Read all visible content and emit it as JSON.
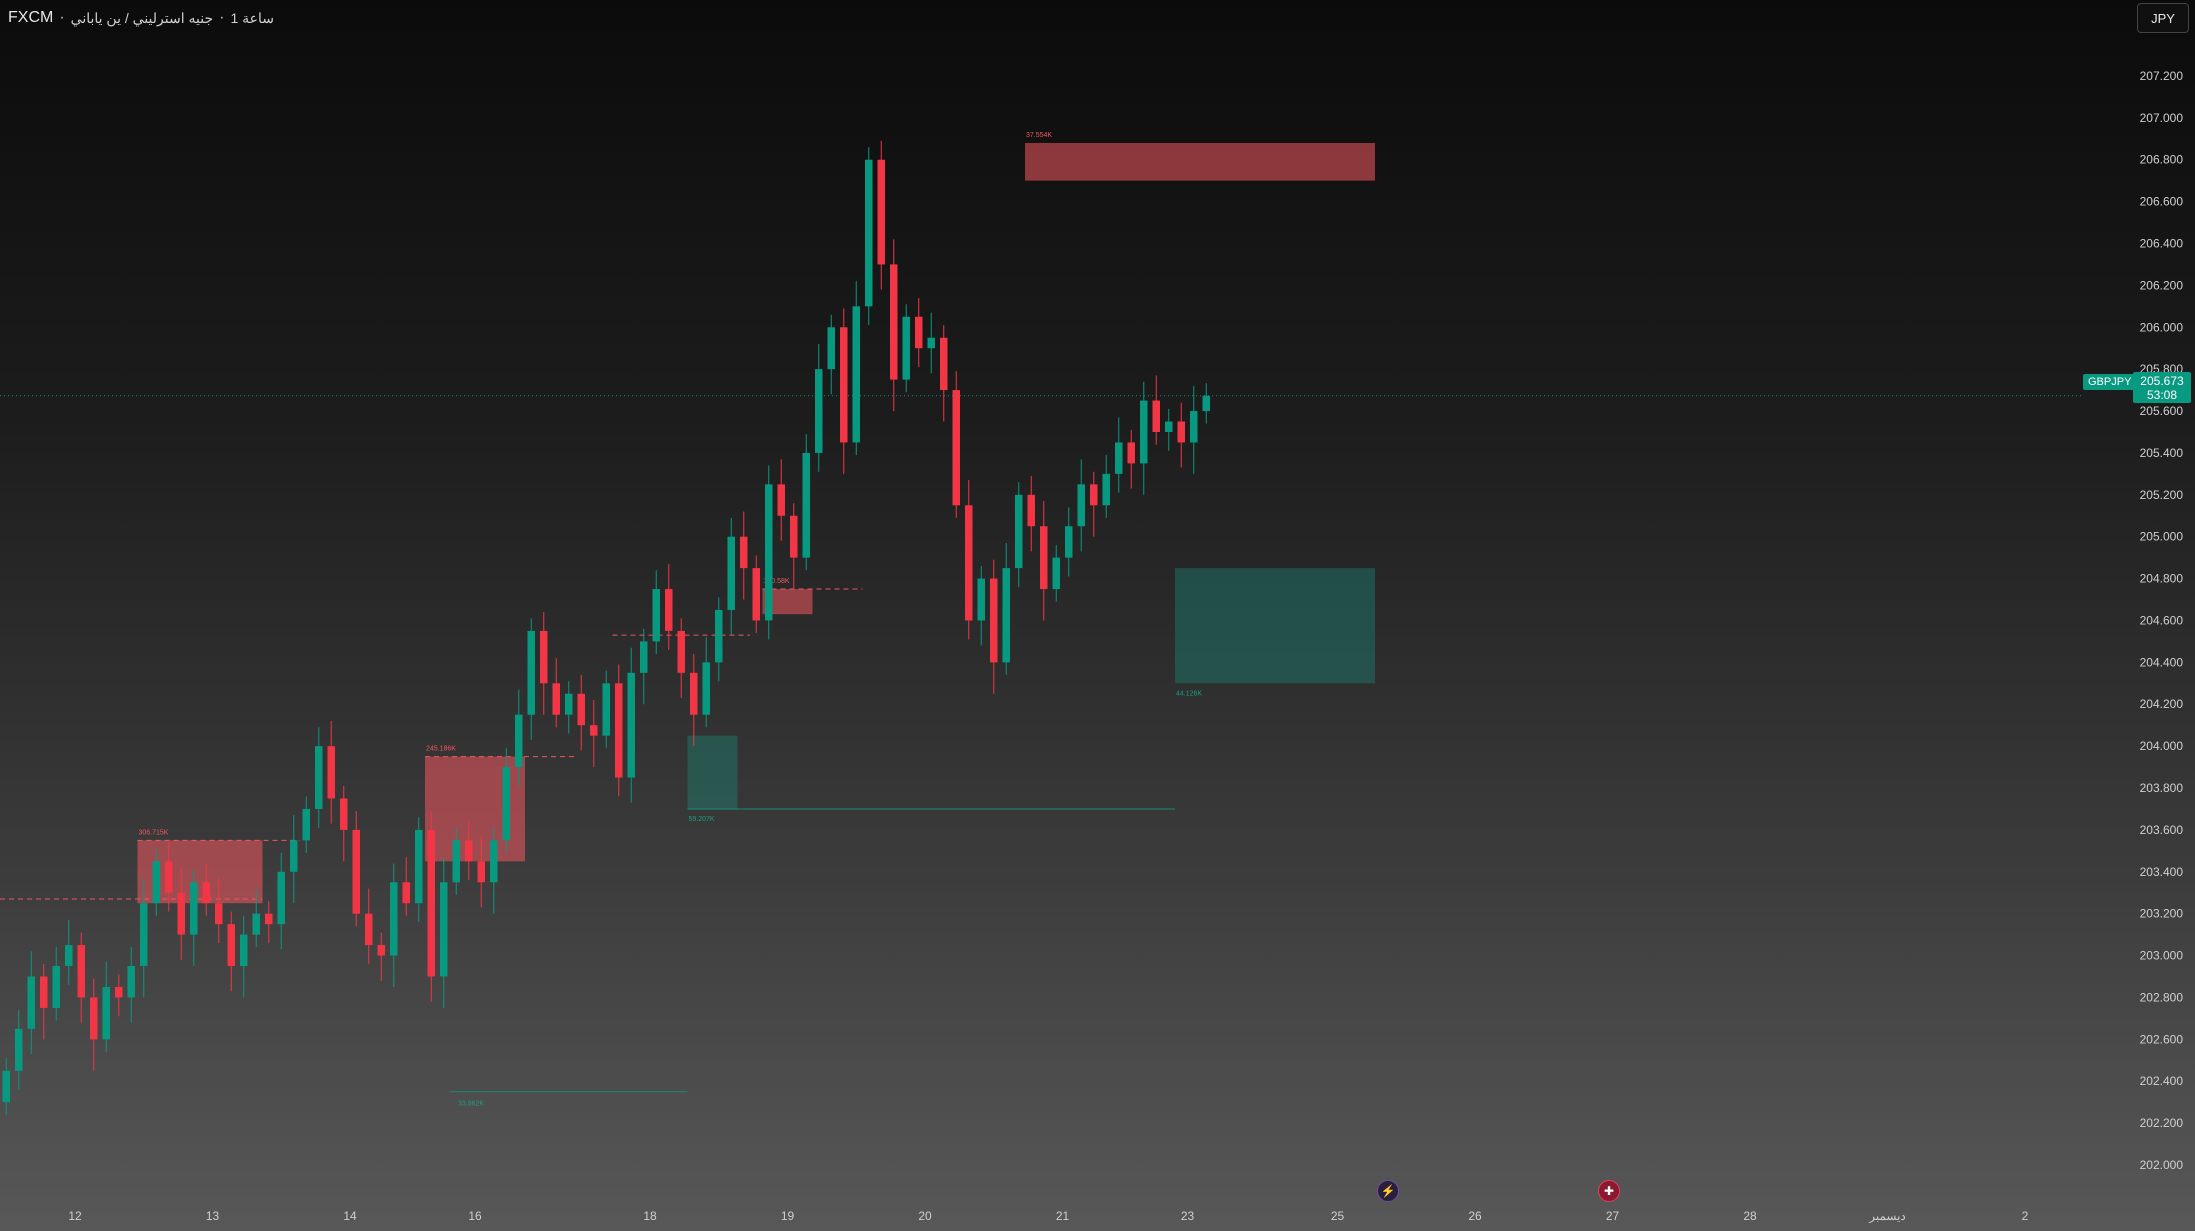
{
  "header": {
    "exchange": "FXCM",
    "separator": "·",
    "symbol_name": "جنيه استرليني / ين ياباني",
    "interval": "1 ساعة"
  },
  "currency_button": "JPY",
  "last_price": {
    "symbol": "GBPJPY",
    "value": "205.673",
    "countdown": "53:08",
    "color": "#089981"
  },
  "events": {
    "first_icon": "lightning-icon",
    "second_icon": "uk-flag-icon"
  },
  "colors": {
    "up": "#089981",
    "down": "#f23645",
    "supply_zone": "#f0585e",
    "demand_zone": "#1b8a7a"
  },
  "chart_data": {
    "type": "candlestick",
    "ylim": [
      202.0,
      207.3
    ],
    "y_ticks": [
      "207.200",
      "207.000",
      "206.800",
      "206.600",
      "206.400",
      "206.200",
      "206.000",
      "205.800",
      "205.600",
      "205.400",
      "205.200",
      "205.000",
      "204.800",
      "204.600",
      "204.400",
      "204.200",
      "204.000",
      "203.800",
      "203.600",
      "203.400",
      "203.200",
      "203.000",
      "202.800",
      "202.600",
      "202.400",
      "202.200",
      "202.000"
    ],
    "x_ticks": [
      {
        "label": "12",
        "i": 6
      },
      {
        "label": "13",
        "i": 17
      },
      {
        "label": "14",
        "i": 28
      },
      {
        "label": "16",
        "i": 38
      },
      {
        "label": "18",
        "i": 52
      },
      {
        "label": "19",
        "i": 63
      },
      {
        "label": "20",
        "i": 74
      },
      {
        "label": "21",
        "i": 85
      },
      {
        "label": "23",
        "i": 95
      },
      {
        "label": "25",
        "i": 107
      },
      {
        "label": "26",
        "i": 118
      },
      {
        "label": "27",
        "i": 129
      },
      {
        "label": "28",
        "i": 140
      },
      {
        "label": "ديسمبر",
        "i": 151
      },
      {
        "label": "2",
        "i": 162
      }
    ],
    "x_range": [
      0,
      168
    ],
    "closes": [
      202.45,
      202.65,
      202.9,
      202.75,
      202.95,
      203.05,
      202.8,
      202.6,
      202.85,
      202.8,
      202.95,
      203.25,
      203.45,
      203.3,
      203.1,
      203.35,
      203.25,
      203.15,
      202.95,
      203.1,
      203.2,
      203.15,
      203.4,
      203.55,
      203.7,
      204.0,
      203.75,
      203.6,
      203.2,
      203.05,
      203.0,
      203.35,
      203.25,
      203.6,
      202.9,
      203.35,
      203.55,
      203.45,
      203.35,
      203.55,
      203.9,
      204.15,
      204.55,
      204.3,
      204.15,
      204.25,
      204.1,
      204.05,
      204.3,
      203.85,
      204.35,
      204.5,
      204.75,
      204.55,
      204.35,
      204.15,
      204.4,
      204.65,
      205.0,
      204.85,
      204.6,
      205.25,
      205.1,
      204.9,
      205.4,
      205.8,
      206.0,
      205.45,
      206.1,
      206.8,
      206.3,
      205.75,
      206.05,
      205.9,
      205.95,
      205.7,
      205.15,
      204.6,
      204.8,
      204.4,
      204.85,
      205.2,
      205.05,
      204.75,
      204.9,
      205.05,
      205.25,
      205.15,
      205.3,
      205.45,
      205.35,
      205.65,
      205.5,
      205.55,
      205.45,
      205.6,
      205.673
    ],
    "opens": [
      202.3,
      202.45,
      202.65,
      202.9,
      202.75,
      202.95,
      203.05,
      202.8,
      202.6,
      202.85,
      202.8,
      202.95,
      203.25,
      203.45,
      203.3,
      203.1,
      203.35,
      203.25,
      203.15,
      202.95,
      203.1,
      203.2,
      203.15,
      203.4,
      203.55,
      203.7,
      204.0,
      203.75,
      203.6,
      203.2,
      203.05,
      203.0,
      203.35,
      203.25,
      203.6,
      202.9,
      203.35,
      203.55,
      203.45,
      203.35,
      203.55,
      203.9,
      204.15,
      204.55,
      204.3,
      204.15,
      204.25,
      204.1,
      204.05,
      204.3,
      203.85,
      204.35,
      204.5,
      204.75,
      204.55,
      204.35,
      204.15,
      204.4,
      204.65,
      205.0,
      204.85,
      204.6,
      205.25,
      205.1,
      204.9,
      205.4,
      205.8,
      206.0,
      205.45,
      206.1,
      206.8,
      206.3,
      205.75,
      206.05,
      205.9,
      205.95,
      205.7,
      205.15,
      204.6,
      204.8,
      204.4,
      204.85,
      205.2,
      205.05,
      204.75,
      204.9,
      205.05,
      205.25,
      205.15,
      205.3,
      205.45,
      205.35,
      205.65,
      205.5,
      205.55,
      205.45,
      205.6
    ],
    "zones": [
      {
        "kind": "supply",
        "label": "306.715K",
        "top": 203.55,
        "bottom": 203.25,
        "x0": 11,
        "x1": 21
      },
      {
        "kind": "supply",
        "label": "245.186K",
        "top": 203.95,
        "bottom": 203.45,
        "x0": 34,
        "x1": 42
      },
      {
        "kind": "supply",
        "label": "170.58K",
        "top": 204.75,
        "bottom": 204.63,
        "x0": 61,
        "x1": 65
      },
      {
        "kind": "supply",
        "label": "37.554K",
        "top": 206.88,
        "bottom": 206.7,
        "x0": 82,
        "x1": 110
      },
      {
        "kind": "demand",
        "label": "44.126K",
        "top": 204.85,
        "bottom": 204.3,
        "x0": 94,
        "x1": 110
      },
      {
        "kind": "demand",
        "label": "59.207K",
        "top": 204.05,
        "bottom": 203.7,
        "x0": 55,
        "x1": 59
      }
    ],
    "levels": [
      {
        "kind": "supply",
        "value": 203.27,
        "x0": 0,
        "x1": 21
      },
      {
        "kind": "supply",
        "value": 203.55,
        "x0": 11,
        "x1": 24
      },
      {
        "kind": "supply",
        "value": 203.95,
        "x0": 34,
        "x1": 46
      },
      {
        "kind": "supply",
        "value": 204.53,
        "x0": 49,
        "x1": 60
      },
      {
        "kind": "supply",
        "value": 204.75,
        "x0": 61,
        "x1": 69
      },
      {
        "kind": "demand",
        "value": 203.7,
        "x0": 55,
        "x1": 94
      },
      {
        "kind": "demand",
        "value": 202.35,
        "x0": 36,
        "x1": 55
      }
    ],
    "demand_low_label": "33.962K",
    "current_price_line": 205.673
  }
}
